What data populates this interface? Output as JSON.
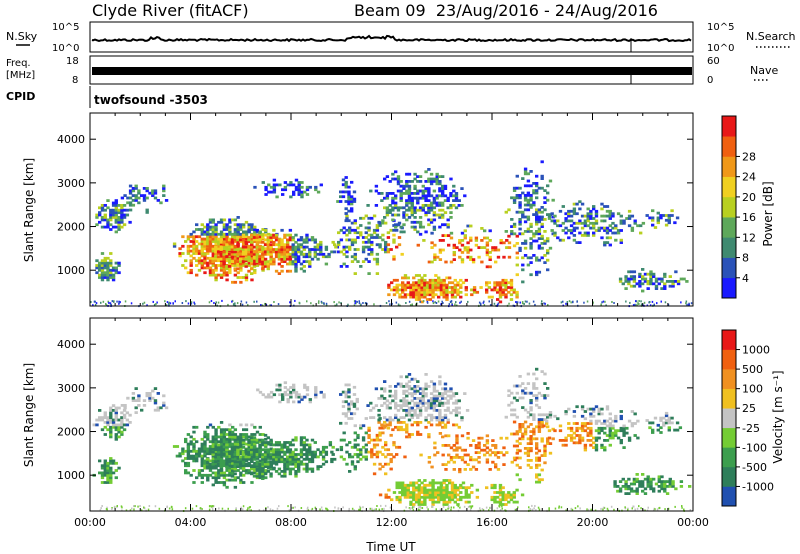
{
  "header": {
    "station": "Clyde River (fitACF)",
    "beam_info": "Beam 09  23/Aug/2016 - 24/Aug/2016"
  },
  "noise_panel": {
    "left_label": "N.Sky",
    "right_label": "N.Search",
    "left_ticks": [
      "10^5",
      "10^0"
    ],
    "right_ticks": [
      "10^5",
      "10^0"
    ]
  },
  "freq_panel": {
    "left_label_line1": "Freq.",
    "left_label_line2": "[MHz]",
    "right_label": "Nave",
    "left_ticks": [
      "18",
      "8"
    ],
    "right_ticks": [
      "60",
      "0"
    ]
  },
  "cpid_panel": {
    "label": "CPID",
    "text": "twofsound -3503"
  },
  "chart_data": [
    {
      "type": "heatmap",
      "panel": "power",
      "ylabel": "Slant Range [km]",
      "ylim": [
        180,
        4600
      ],
      "yticks": [
        "1000",
        "2000",
        "3000",
        "4000"
      ],
      "xlim": [
        0,
        24
      ],
      "xticks": [
        "00:00",
        "04:00",
        "08:00",
        "12:00",
        "16:00",
        "20:00",
        "00:00"
      ],
      "colorbar": {
        "label": "Power [dB]",
        "ticks": [
          "4",
          "8",
          "12",
          "16",
          "20",
          "24",
          "28"
        ],
        "colors": [
          "#1a1aff",
          "#2a52b8",
          "#3f8a70",
          "#5ea85a",
          "#b8d020",
          "#f0d020",
          "#f09818",
          "#f06010",
          "#e81818"
        ]
      }
    },
    {
      "type": "heatmap",
      "panel": "velocity",
      "xlabel": "Time UT",
      "ylabel": "Slant Range [km]",
      "ylim": [
        180,
        4600
      ],
      "yticks": [
        "1000",
        "2000",
        "3000",
        "4000"
      ],
      "xlim": [
        0,
        24
      ],
      "xticks": [
        "00:00",
        "04:00",
        "08:00",
        "12:00",
        "16:00",
        "20:00",
        "00:00"
      ],
      "colorbar": {
        "label": "Velocity [m s⁻¹]",
        "ticks": [
          "1000",
          "500",
          "100",
          "25",
          "-25",
          "-100",
          "-500",
          "-1000"
        ],
        "colors": [
          "#2050b0",
          "#2e7e5a",
          "#3c9e4e",
          "#74cc34",
          "#c4c4c4",
          "#f0c020",
          "#f09020",
          "#f06010",
          "#e81818"
        ]
      }
    }
  ]
}
